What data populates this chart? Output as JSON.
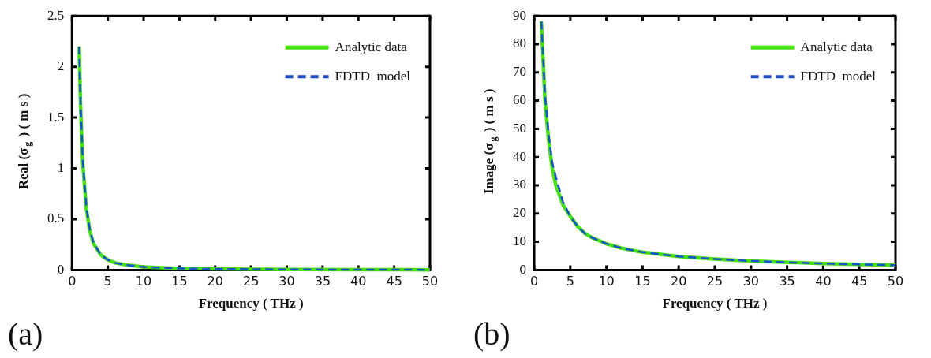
{
  "chart_data": [
    {
      "type": "line",
      "xlabel": "Frequency ( THz )",
      "ylabel": "Real (σ$_{g}$ ) ( m s )",
      "xlim": [
        0,
        50
      ],
      "xticks": [
        0,
        5,
        10,
        15,
        20,
        25,
        30,
        35,
        40,
        45,
        50
      ],
      "ylim": [
        0,
        2.5
      ],
      "yticks": [
        0,
        0.5,
        1,
        1.5,
        2,
        2.5
      ],
      "legend": "top right",
      "grid": false,
      "annotations": [
        "(a)"
      ],
      "series": [
        {
          "name": "Analytic data",
          "color": "#44e014",
          "line_style": "solid",
          "x": [
            1,
            1.2,
            1.5,
            2,
            2.5,
            3,
            4,
            5,
            6,
            8,
            10,
            15,
            20,
            30,
            40,
            50
          ],
          "values": [
            2.2,
            1.6,
            1.05,
            0.6,
            0.38,
            0.26,
            0.15,
            0.1,
            0.07,
            0.045,
            0.03,
            0.015,
            0.01,
            0.005,
            0.003,
            0.002
          ]
        },
        {
          "name": "FDTD  model",
          "color": "#1a4fd0",
          "line_style": "dashed",
          "x": [
            1,
            1.2,
            1.5,
            2,
            2.5,
            3,
            4,
            5,
            6,
            8,
            10,
            15,
            20,
            30,
            40,
            50
          ],
          "values": [
            2.2,
            1.62,
            1.08,
            0.62,
            0.39,
            0.27,
            0.15,
            0.1,
            0.07,
            0.045,
            0.03,
            0.015,
            0.01,
            0.005,
            0.003,
            0.002
          ]
        }
      ]
    },
    {
      "type": "line",
      "xlabel": "Frequency ( THz )",
      "ylabel": "Image (σ$_{g}$ ) ( m s )",
      "xlim": [
        0,
        50
      ],
      "xticks": [
        0,
        5,
        10,
        15,
        20,
        25,
        30,
        35,
        40,
        45,
        50
      ],
      "ylim": [
        0,
        90
      ],
      "yticks": [
        0,
        10,
        20,
        30,
        40,
        50,
        60,
        70,
        80,
        90
      ],
      "legend": "top right",
      "grid": false,
      "annotations": [
        "(b)"
      ],
      "series": [
        {
          "name": "Analytic data",
          "color": "#44e014",
          "line_style": "solid",
          "x": [
            1,
            1.5,
            2,
            2.5,
            3,
            4,
            5,
            6,
            7,
            8,
            10,
            12,
            15,
            20,
            25,
            30,
            35,
            40,
            45,
            50
          ],
          "values": [
            88,
            60,
            46,
            36,
            30,
            23,
            19,
            15.5,
            13,
            11.5,
            9.3,
            7.8,
            6.3,
            4.8,
            3.9,
            3.2,
            2.7,
            2.3,
            2,
            1.7
          ]
        },
        {
          "name": "FDTD  model",
          "color": "#1a4fd0",
          "line_style": "dashed",
          "x": [
            1,
            1.5,
            2,
            2.5,
            3,
            4,
            5,
            6,
            7,
            8,
            10,
            12,
            15,
            20,
            25,
            30,
            35,
            40,
            45,
            50
          ],
          "values": [
            88,
            62,
            48,
            38,
            33,
            24,
            19,
            15.5,
            13,
            11.5,
            9.3,
            7.8,
            6.3,
            4.8,
            3.9,
            3.2,
            2.7,
            2.3,
            2,
            1.7
          ]
        }
      ]
    }
  ]
}
